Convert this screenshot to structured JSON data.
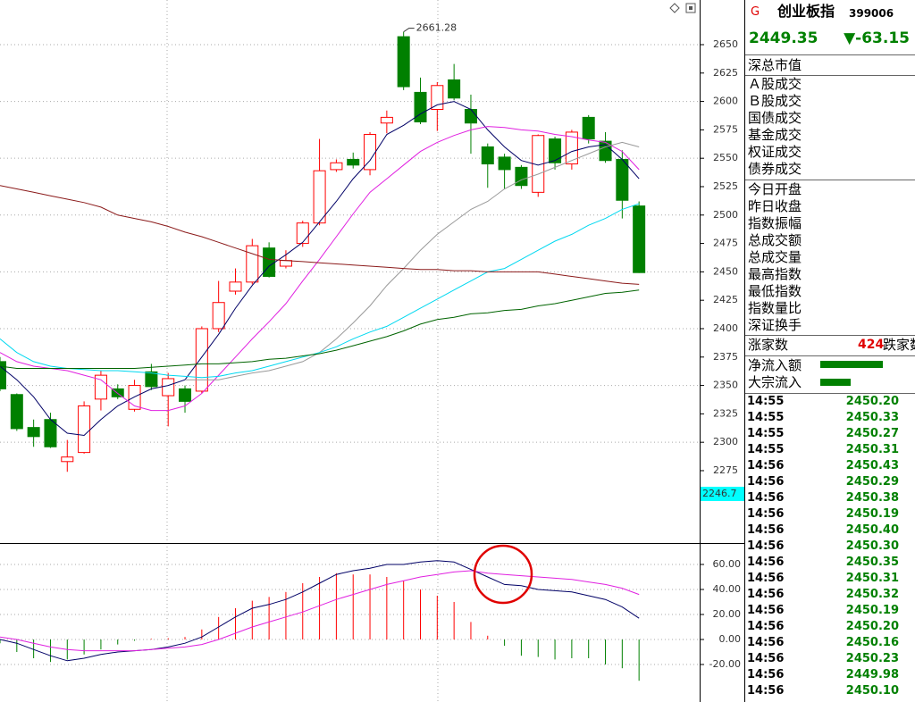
{
  "chart_data": [
    {
      "type": "candlestick",
      "open": [
        2371,
        2342,
        2313,
        2320,
        2283,
        2291,
        2338,
        2347,
        2329,
        2362,
        2341,
        2347,
        2345,
        2400,
        2433,
        2441,
        2471,
        2455,
        2475,
        2493,
        2540,
        2549,
        2540,
        2581,
        2657,
        2608,
        2593,
        2619,
        2593,
        2560,
        2551,
        2542,
        2520,
        2567,
        2545,
        2586,
        2565,
        2549,
        2508
      ],
      "close": [
        2347,
        2312,
        2305,
        2296,
        2287,
        2332,
        2359,
        2340,
        2350,
        2349,
        2356,
        2336,
        2400,
        2423,
        2441,
        2473,
        2446,
        2460,
        2493,
        2539,
        2546,
        2544,
        2571,
        2586,
        2613,
        2582,
        2614,
        2603,
        2581,
        2545,
        2540,
        2526,
        2570,
        2546,
        2573,
        2567,
        2548,
        2513,
        2449.35
      ],
      "high": [
        2375,
        2343,
        2320,
        2326,
        2302,
        2336,
        2363,
        2351,
        2355,
        2369,
        2361,
        2350,
        2402,
        2442,
        2453,
        2479,
        2476,
        2469,
        2495,
        2567,
        2549,
        2555,
        2573,
        2592,
        2661.28,
        2621,
        2617,
        2633,
        2606,
        2563,
        2554,
        2544,
        2571,
        2569,
        2575,
        2588,
        2573,
        2557,
        2512
      ],
      "low": [
        2345,
        2310,
        2296,
        2295,
        2274,
        2290,
        2328,
        2338,
        2327,
        2346,
        2314,
        2326,
        2343,
        2397,
        2430,
        2439,
        2445,
        2453,
        2472,
        2491,
        2538,
        2541,
        2535,
        2572,
        2610,
        2580,
        2574,
        2601,
        2554,
        2524,
        2523,
        2523,
        2516,
        2540,
        2540,
        2563,
        2546,
        2497,
        2449
      ],
      "colors": {
        "up": "#ff0000",
        "down": "#008000"
      },
      "lines": [
        {
          "color": "#000066",
          "values": [
            2367,
            2355,
            2340,
            2320,
            2308,
            2306,
            2320,
            2332,
            2340,
            2347,
            2350,
            2355,
            2375,
            2395,
            2418,
            2438,
            2455,
            2465,
            2476,
            2494,
            2512,
            2532,
            2548,
            2571,
            2579,
            2589,
            2597,
            2600,
            2593,
            2575,
            2560,
            2548,
            2544,
            2548,
            2556,
            2560,
            2562,
            2549,
            2532
          ]
        },
        {
          "color": "#e020e0",
          "values": [
            2379,
            2371,
            2367,
            2365,
            2363,
            2359,
            2355,
            2343,
            2332,
            2328,
            2328,
            2332,
            2343,
            2359,
            2375,
            2391,
            2406,
            2422,
            2442,
            2461,
            2481,
            2501,
            2520,
            2532,
            2544,
            2556,
            2564,
            2570,
            2575,
            2578,
            2577,
            2575,
            2574,
            2571,
            2569,
            2566,
            2564,
            2556,
            2540
          ]
        },
        {
          "color": "#999999",
          "values": [
            null,
            null,
            null,
            null,
            null,
            null,
            null,
            null,
            null,
            null,
            null,
            2355,
            2355,
            2355,
            2358,
            2361,
            2363,
            2367,
            2371,
            2379,
            2391,
            2405,
            2420,
            2438,
            2453,
            2469,
            2483,
            2494,
            2505,
            2512,
            2523,
            2531,
            2536,
            2542,
            2548,
            2554,
            2560,
            2564,
            2560
          ]
        },
        {
          "color": "#00d8f0",
          "values": [
            2391,
            2379,
            2371,
            2367,
            2365,
            2364,
            2363,
            2363,
            2362,
            2361,
            2359,
            2358,
            2357,
            2358,
            2361,
            2363,
            2367,
            2371,
            2375,
            2379,
            2384,
            2391,
            2397,
            2402,
            2410,
            2418,
            2426,
            2434,
            2442,
            2450,
            2453,
            2461,
            2469,
            2477,
            2483,
            2491,
            2497,
            2505,
            2510
          ]
        },
        {
          "color": "#006400",
          "values": [
            2367,
            2365,
            2365,
            2365,
            2365,
            2365,
            2365,
            2365,
            2365,
            2366,
            2367,
            2368,
            2369,
            2369,
            2370,
            2371,
            2373,
            2374,
            2376,
            2378,
            2381,
            2385,
            2389,
            2393,
            2398,
            2404,
            2408,
            2410,
            2413,
            2414,
            2416,
            2417,
            2420,
            2422,
            2425,
            2428,
            2431,
            2432,
            2434
          ]
        },
        {
          "color": "#8b1a1a",
          "values": [
            2526,
            2523,
            2520,
            2517,
            2514,
            2511,
            2507,
            2500,
            2497,
            2494,
            2490,
            2485,
            2481,
            2476,
            2471,
            2466,
            2461,
            2460,
            2459,
            2458,
            2457,
            2456,
            2455,
            2454,
            2453,
            2452,
            2452,
            2451,
            2451,
            2450,
            2450,
            2450,
            2450,
            2448,
            2446,
            2444,
            2442,
            2440,
            2439
          ]
        }
      ],
      "ylim": [
        2211.3,
        2689.3
      ],
      "yticks": [
        2275,
        2300,
        2325,
        2350,
        2375,
        2400,
        2425,
        2450,
        2475,
        2500,
        2525,
        2550,
        2575,
        2600,
        2625,
        2650
      ],
      "grid": true
    },
    {
      "type": "macd",
      "values": [
        -3,
        -10,
        -15,
        -18,
        -16,
        -12,
        -8,
        -4,
        -1,
        0.5,
        1,
        2,
        8,
        18,
        25,
        31,
        34,
        38,
        45,
        50,
        53,
        52,
        52,
        50,
        47,
        40,
        35,
        30,
        14,
        3,
        -5,
        -13,
        -14,
        -16,
        -15,
        -15,
        -20,
        -23,
        -33
      ],
      "colors": {
        "up": "#ff0000",
        "down": "#008000"
      },
      "series": [
        {
          "color": "#000066",
          "values": [
            0,
            -3,
            -8,
            -13,
            -17,
            -15,
            -12,
            -10,
            -9,
            -8,
            -6,
            -3,
            2,
            10,
            18,
            25,
            28,
            32,
            38,
            45,
            52,
            55,
            57,
            60,
            60,
            62,
            63,
            62,
            56,
            50,
            44,
            43,
            40,
            39,
            38,
            35,
            32,
            26,
            17
          ]
        },
        {
          "color": "#e020e0",
          "values": [
            2,
            0,
            -3,
            -6,
            -8,
            -9,
            -9,
            -9,
            -9,
            -8,
            -7,
            -6,
            -4,
            0,
            5,
            10,
            14,
            18,
            22,
            27,
            32,
            36,
            40,
            44,
            47,
            50,
            52,
            54,
            55,
            53,
            52,
            51,
            50,
            49,
            48,
            46,
            44,
            41,
            36
          ]
        }
      ],
      "ylim": [
        -50,
        75.7
      ],
      "yticks": [
        {
          "value": -20,
          "label": "-20.00"
        },
        {
          "value": 0,
          "label": "0.00"
        },
        {
          "value": 20,
          "label": "20.00"
        },
        {
          "value": 40,
          "label": "40.00"
        },
        {
          "value": 60,
          "label": "60.00"
        }
      ]
    }
  ],
  "axis_cursor_label": "2246.7",
  "quote_panel": {
    "market_tag": "G",
    "name": "创业板指",
    "code": "399006",
    "price": "2449.35",
    "change": "▼-63.15",
    "fields": [
      "深总市值",
      "Ａ股成交",
      "Ｂ股成交",
      "国债成交",
      "基金成交",
      "权证成交",
      "债券成交",
      "今日开盘",
      "昨日收盘",
      "指数振幅",
      "总成交额",
      "总成交量",
      "最高指数",
      "最低指数",
      "指数量比",
      "深证换手"
    ],
    "advance_label": "涨家数",
    "advance_count": "424",
    "decline_label": "跌家数",
    "flow_labels": [
      "净流入额",
      "大宗流入"
    ],
    "ticks": [
      {
        "time": "14:55",
        "price": "2450.20"
      },
      {
        "time": "14:55",
        "price": "2450.33"
      },
      {
        "time": "14:55",
        "price": "2450.27"
      },
      {
        "time": "14:55",
        "price": "2450.31"
      },
      {
        "time": "14:56",
        "price": "2450.43"
      },
      {
        "time": "14:56",
        "price": "2450.29"
      },
      {
        "time": "14:56",
        "price": "2450.38"
      },
      {
        "time": "14:56",
        "price": "2450.19"
      },
      {
        "time": "14:56",
        "price": "2450.40"
      },
      {
        "time": "14:56",
        "price": "2450.30"
      },
      {
        "time": "14:56",
        "price": "2450.35"
      },
      {
        "time": "14:56",
        "price": "2450.31"
      },
      {
        "time": "14:56",
        "price": "2450.32"
      },
      {
        "time": "14:56",
        "price": "2450.19"
      },
      {
        "time": "14:56",
        "price": "2450.20"
      },
      {
        "time": "14:56",
        "price": "2450.16"
      },
      {
        "time": "14:56",
        "price": "2450.23"
      },
      {
        "time": "14:56",
        "price": "2449.98"
      },
      {
        "time": "14:56",
        "price": "2450.10"
      }
    ]
  }
}
